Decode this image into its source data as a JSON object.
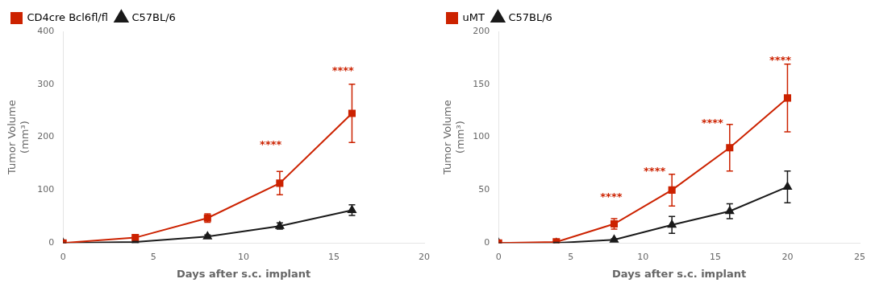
{
  "chart_data": [
    {
      "type": "line",
      "x": [
        0,
        4,
        8,
        12,
        16
      ],
      "series": [
        {
          "name": "CD4cre Bcl6fl/fl",
          "color": "#CC2200",
          "marker": "square",
          "values": [
            0,
            10,
            47,
            113,
            245
          ],
          "yerr": [
            0,
            3,
            8,
            22,
            55
          ]
        },
        {
          "name": "C57BL/6",
          "color": "#1a1a1a",
          "marker": "triangle",
          "values": [
            0,
            2,
            12,
            32,
            62
          ],
          "yerr": [
            0,
            1,
            3,
            6,
            10
          ]
        }
      ],
      "xlim": [
        0,
        20
      ],
      "ylim": [
        0,
        400
      ],
      "xticks": [
        0,
        5,
        10,
        15,
        20
      ],
      "yticks": [
        0,
        100,
        200,
        300,
        400
      ],
      "xlabel": "Days after s.c. implant",
      "ylabel": "Tumor Volume\n(mm³)",
      "annotations": [
        {
          "x": 11.5,
          "y": 175,
          "text": "****",
          "color": "#CC2200"
        },
        {
          "x": 15.5,
          "y": 315,
          "text": "****",
          "color": "#CC2200"
        }
      ],
      "grid": false,
      "legend": "upper left"
    },
    {
      "type": "line",
      "x": [
        0,
        4,
        8,
        12,
        16,
        20
      ],
      "series": [
        {
          "name": "uMT",
          "color": "#CC2200",
          "marker": "square",
          "values": [
            0,
            1,
            18,
            50,
            90,
            137
          ],
          "yerr": [
            0,
            0.5,
            5,
            15,
            22,
            32
          ]
        },
        {
          "name": "C57BL/6",
          "color": "#1a1a1a",
          "marker": "triangle",
          "values": [
            0,
            0,
            3,
            17,
            30,
            53
          ],
          "yerr": [
            0,
            0.5,
            1,
            8,
            7,
            15
          ]
        }
      ],
      "xlim": [
        0,
        25
      ],
      "ylim": [
        0,
        200
      ],
      "xticks": [
        0,
        5,
        10,
        15,
        20,
        25
      ],
      "yticks": [
        0,
        50,
        100,
        150,
        200
      ],
      "xlabel": "Days after s.c. implant",
      "ylabel": "Tumor Volume\n(mm³)",
      "annotations": [
        {
          "x": 7.8,
          "y": 38,
          "text": "****",
          "color": "#CC2200"
        },
        {
          "x": 10.8,
          "y": 62,
          "text": "****",
          "color": "#CC2200"
        },
        {
          "x": 14.8,
          "y": 108,
          "text": "****",
          "color": "#CC2200"
        },
        {
          "x": 19.5,
          "y": 167,
          "text": "****",
          "color": "#CC2200"
        }
      ],
      "grid": false,
      "legend": "upper left"
    }
  ]
}
